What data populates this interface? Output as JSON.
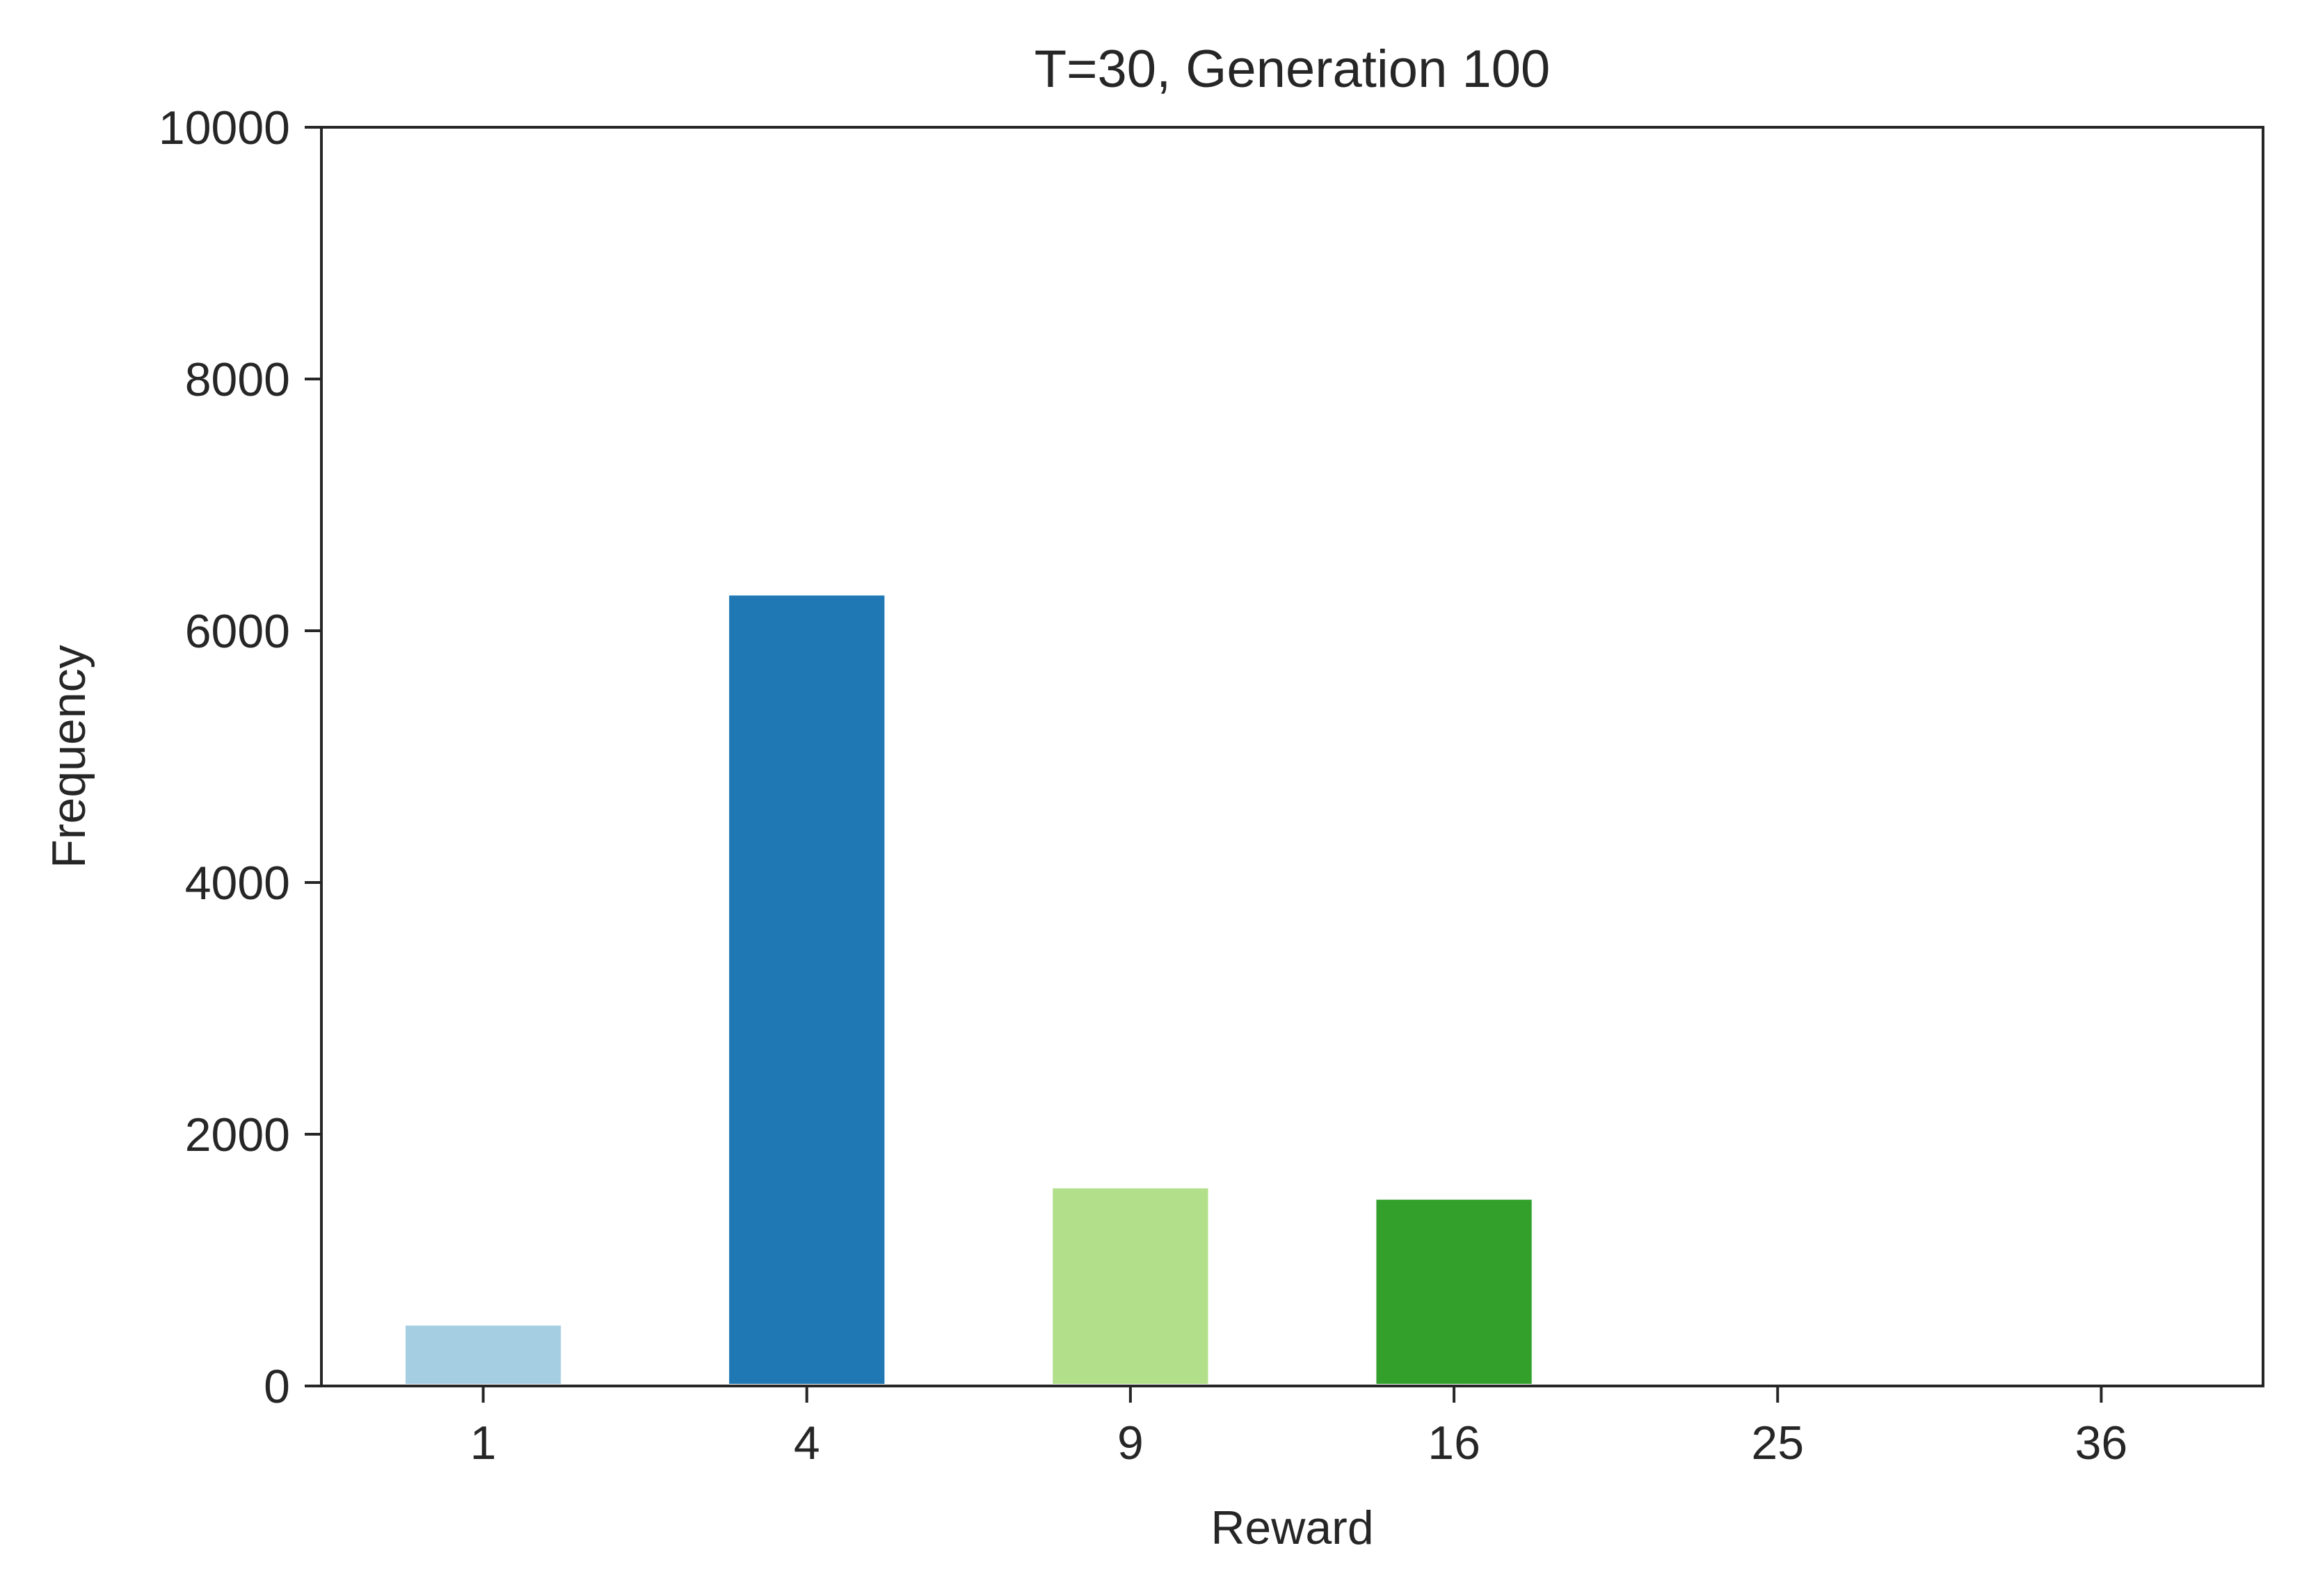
{
  "chart_data": {
    "type": "bar",
    "title": "T=30, Generation 100",
    "xlabel": "Reward",
    "ylabel": "Frequency",
    "categories": [
      "1",
      "4",
      "9",
      "16",
      "25",
      "36"
    ],
    "values": [
      480,
      6280,
      1570,
      1480,
      0,
      0
    ],
    "colors": [
      "#a6cee3",
      "#1f78b4",
      "#b2df8a",
      "#33a02c",
      "#fb9a99",
      "#e31a1c"
    ],
    "ylim": [
      0,
      10000
    ],
    "yticks": [
      "0",
      "2000",
      "4000",
      "6000",
      "8000",
      "10000"
    ],
    "grid": false,
    "legend": "none"
  }
}
